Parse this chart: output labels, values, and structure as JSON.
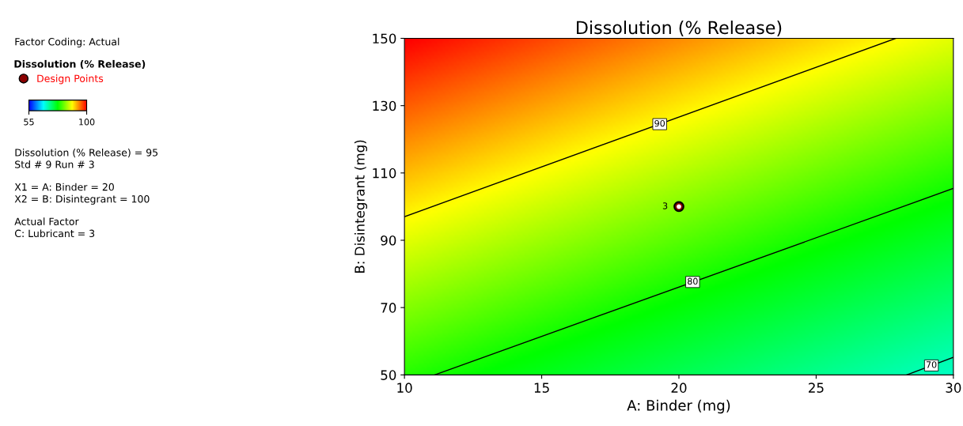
{
  "chart_data": {
    "type": "line",
    "title": "Dissolution (% Release)",
    "xlabel": "A: Binder (mg)",
    "ylabel": "B: Disintegrant (mg)",
    "legend_title": "Dissolution (% Release)",
    "legend": "left",
    "clim": [
      55,
      100
    ],
    "cticks": [
      55,
      100
    ],
    "xlim": [
      10,
      30
    ],
    "ylim": [
      50,
      150
    ],
    "xticks": [
      10,
      15,
      20,
      25,
      30
    ],
    "yticks": [
      50,
      70,
      90,
      110,
      130,
      150
    ],
    "grid": false,
    "series": [
      {
        "color": "#000000",
        "x": [
          10,
          27.9
        ],
        "values": [
          97,
          150
        ]
      },
      {
        "color": "#000000",
        "x": [
          11.1,
          30
        ],
        "values": [
          50,
          105.4
        ]
      },
      {
        "color": "#000000",
        "x": [
          28.3,
          30
        ],
        "values": [
          50,
          55.2
        ]
      },
      {
        "type": "scatter",
        "name": "Design Points",
        "color": "#8b0000",
        "marker": "circle",
        "x": [
          20
        ],
        "values": [
          100
        ]
      }
    ],
    "annotations": [
      {
        "text": "90",
        "x": 19.3,
        "y": 124.5
      },
      {
        "text": "80",
        "x": 20.5,
        "y": 77.6
      },
      {
        "text": "70",
        "x": 29.2,
        "y": 52.8
      },
      {
        "text": "3",
        "x": 20,
        "y": 100
      },
      "Factor Coding: Actual",
      "Dissolution (% Release) = 95",
      "Std # 9 Run # 3",
      "X1 = A: Binder = 20",
      "X2 = B: Disintegrant = 100",
      "Actual Factor",
      "C: Lubricant = 3"
    ]
  }
}
